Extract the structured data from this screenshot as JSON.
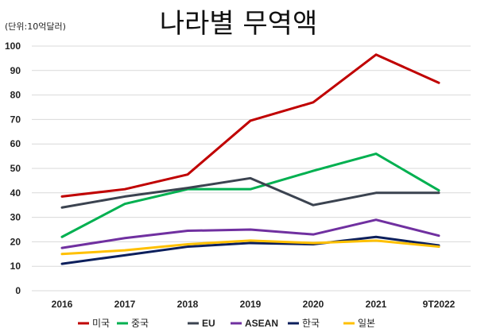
{
  "chart_data": {
    "type": "line",
    "title": "나라별 무역액",
    "unit_label": "(단위:10억달러)",
    "categories": [
      "2016",
      "2017",
      "2018",
      "2019",
      "2020",
      "2021",
      "9T2022"
    ],
    "ylim": [
      0,
      100
    ],
    "yticks": [
      0,
      10,
      20,
      30,
      40,
      50,
      60,
      70,
      80,
      90,
      100
    ],
    "grid": true,
    "legend_position": "bottom",
    "series": [
      {
        "name": "미국",
        "color": "#c00000",
        "values": [
          38.5,
          41.5,
          47.5,
          69.5,
          77,
          96.5,
          85
        ]
      },
      {
        "name": "중국",
        "color": "#00b050",
        "values": [
          22,
          35.5,
          41.5,
          41.5,
          49,
          56,
          41
        ]
      },
      {
        "name": "EU",
        "color": "#3b4350",
        "values": [
          34,
          38.5,
          42,
          46,
          35,
          40,
          40
        ]
      },
      {
        "name": "ASEAN",
        "color": "#7030a0",
        "values": [
          17.5,
          21.5,
          24.5,
          25,
          23,
          29,
          22.5
        ]
      },
      {
        "name": "한국",
        "color": "#0c1f5c",
        "values": [
          11,
          14.5,
          18,
          19.5,
          19,
          22,
          18.5
        ]
      },
      {
        "name": "일본",
        "color": "#ffc000",
        "values": [
          15,
          16.5,
          19,
          20.5,
          19.5,
          20.5,
          18
        ]
      }
    ]
  }
}
